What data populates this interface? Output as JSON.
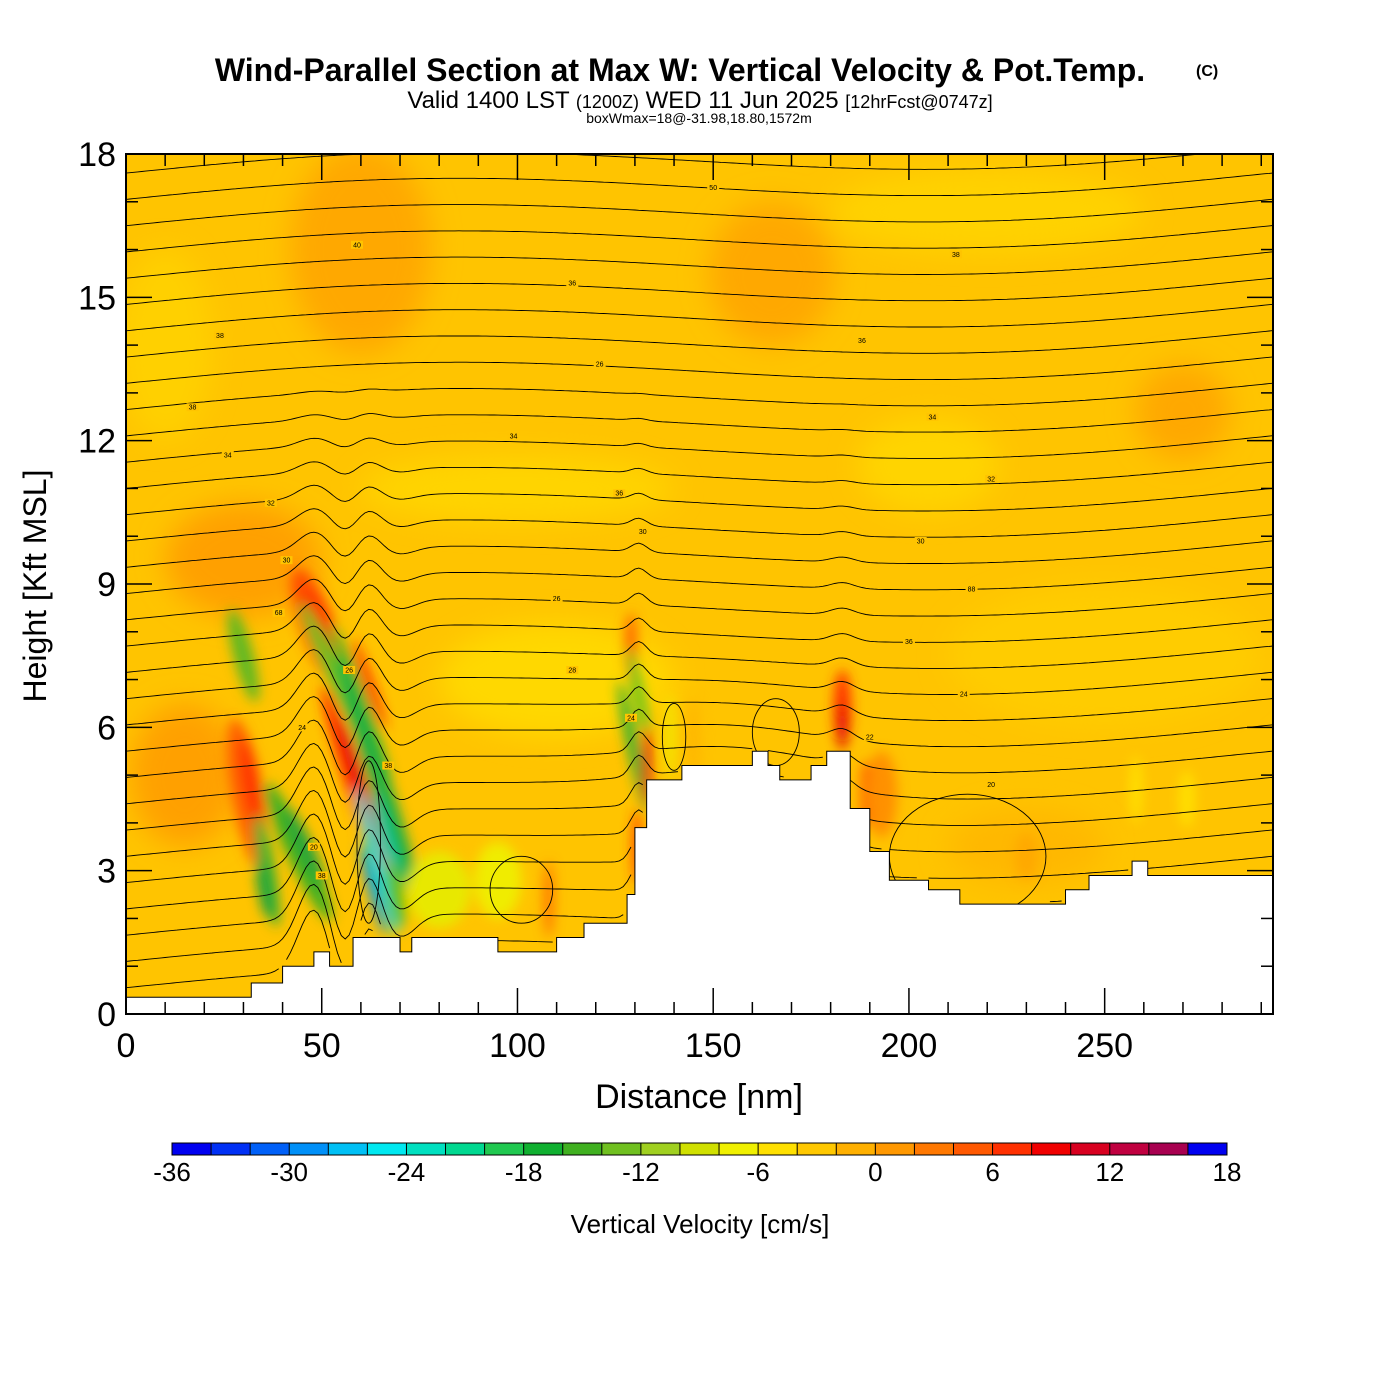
{
  "chart_data": {
    "type": "heatmap",
    "title": "Wind-Parallel Section at Max W: Vertical Velocity & Pot.Temp.",
    "copyright": "(C)",
    "subtitle": {
      "valid_prefix": "Valid 1400 LST",
      "utc": "(1200Z)",
      "date": "WED 11 Jun 2025",
      "forecast": "[12hrFcst@0747z]"
    },
    "box_info": "boxWmax=18@-31.98,18.80,1572m",
    "xlabel": "Distance [nm]",
    "ylabel": "Height [Kft MSL]",
    "xlim": [
      0,
      293
    ],
    "ylim": [
      0,
      18
    ],
    "x_ticks": [
      0,
      50,
      100,
      150,
      200,
      250
    ],
    "y_ticks": [
      0,
      3,
      6,
      9,
      12,
      15,
      18
    ],
    "colorbar": {
      "label": "Vertical Velocity [cm/s]",
      "min": -36,
      "max": 18,
      "step": 2,
      "tick_values": [
        -36,
        -30,
        -24,
        -18,
        -12,
        -6,
        0,
        6,
        12,
        18
      ],
      "colors": [
        "#0000f0",
        "#0030f5",
        "#0060f8",
        "#0090f8",
        "#00c0f5",
        "#00e8f0",
        "#00e0c0",
        "#00d890",
        "#20c850",
        "#10b030",
        "#40b020",
        "#70c020",
        "#a0d020",
        "#d0e000",
        "#f0f000",
        "#ffe000",
        "#ffc800",
        "#ffb000",
        "#ff9800",
        "#ff7800",
        "#ff5800",
        "#ff3000",
        "#f00000",
        "#d80020",
        "#c00040",
        "#a80050"
      ]
    },
    "terrain": [
      [
        0,
        0.35
      ],
      [
        32,
        0.35
      ],
      [
        32,
        0.65
      ],
      [
        40,
        0.65
      ],
      [
        40,
        1.0
      ],
      [
        48,
        1.0
      ],
      [
        48,
        1.3
      ],
      [
        52,
        1.3
      ],
      [
        52,
        1.0
      ],
      [
        58,
        1.0
      ],
      [
        58,
        1.6
      ],
      [
        70,
        1.6
      ],
      [
        70,
        1.3
      ],
      [
        73,
        1.3
      ],
      [
        73,
        1.6
      ],
      [
        95,
        1.6
      ],
      [
        95,
        1.3
      ],
      [
        110,
        1.3
      ],
      [
        110,
        1.6
      ],
      [
        117,
        1.6
      ],
      [
        117,
        1.9
      ],
      [
        128,
        1.9
      ],
      [
        128,
        2.5
      ],
      [
        130,
        2.5
      ],
      [
        130,
        3.9
      ],
      [
        133,
        3.9
      ],
      [
        133,
        4.9
      ],
      [
        142,
        4.9
      ],
      [
        142,
        5.2
      ],
      [
        160,
        5.2
      ],
      [
        160,
        5.5
      ],
      [
        164,
        5.5
      ],
      [
        164,
        5.2
      ],
      [
        167,
        5.2
      ],
      [
        167,
        4.9
      ],
      [
        175,
        4.9
      ],
      [
        175,
        5.2
      ],
      [
        179,
        5.2
      ],
      [
        179,
        5.5
      ],
      [
        185,
        5.5
      ],
      [
        185,
        4.3
      ],
      [
        190,
        4.3
      ],
      [
        190,
        3.4
      ],
      [
        195,
        3.4
      ],
      [
        195,
        2.8
      ],
      [
        205,
        2.8
      ],
      [
        205,
        2.6
      ],
      [
        213,
        2.6
      ],
      [
        213,
        2.3
      ],
      [
        240,
        2.3
      ],
      [
        240,
        2.6
      ],
      [
        246,
        2.6
      ],
      [
        246,
        2.9
      ],
      [
        257,
        2.9
      ],
      [
        257,
        3.2
      ],
      [
        261,
        3.2
      ],
      [
        261,
        2.9
      ],
      [
        293,
        2.9
      ]
    ],
    "contour_labels": [
      {
        "x": 150,
        "y": 17.3,
        "text": "50"
      },
      {
        "x": 59,
        "y": 16.1,
        "text": "40"
      },
      {
        "x": 212,
        "y": 15.9,
        "text": "38"
      },
      {
        "x": 114,
        "y": 15.3,
        "text": "36"
      },
      {
        "x": 24,
        "y": 14.2,
        "text": "38"
      },
      {
        "x": 188,
        "y": 14.1,
        "text": "36"
      },
      {
        "x": 121,
        "y": 13.6,
        "text": "26"
      },
      {
        "x": 17,
        "y": 12.7,
        "text": "38"
      },
      {
        "x": 206,
        "y": 12.5,
        "text": "34"
      },
      {
        "x": 99,
        "y": 12.1,
        "text": "34"
      },
      {
        "x": 26,
        "y": 11.7,
        "text": "34"
      },
      {
        "x": 221,
        "y": 11.2,
        "text": "32"
      },
      {
        "x": 126,
        "y": 10.9,
        "text": "36"
      },
      {
        "x": 37,
        "y": 10.7,
        "text": "32"
      },
      {
        "x": 132,
        "y": 10.1,
        "text": "30"
      },
      {
        "x": 203,
        "y": 9.9,
        "text": "30"
      },
      {
        "x": 41,
        "y": 9.5,
        "text": "30"
      },
      {
        "x": 216,
        "y": 8.9,
        "text": "88"
      },
      {
        "x": 110,
        "y": 8.7,
        "text": "26"
      },
      {
        "x": 39,
        "y": 8.4,
        "text": "68"
      },
      {
        "x": 200,
        "y": 7.8,
        "text": "36"
      },
      {
        "x": 57,
        "y": 7.2,
        "text": "26"
      },
      {
        "x": 114,
        "y": 7.2,
        "text": "28"
      },
      {
        "x": 214,
        "y": 6.7,
        "text": "24"
      },
      {
        "x": 129,
        "y": 6.2,
        "text": "24"
      },
      {
        "x": 45,
        "y": 6.0,
        "text": "24"
      },
      {
        "x": 190,
        "y": 5.8,
        "text": "22"
      },
      {
        "x": 67,
        "y": 5.2,
        "text": "38"
      },
      {
        "x": 221,
        "y": 4.8,
        "text": "20"
      },
      {
        "x": 48,
        "y": 3.5,
        "text": "20"
      },
      {
        "x": 50,
        "y": 2.9,
        "text": "38"
      }
    ]
  }
}
